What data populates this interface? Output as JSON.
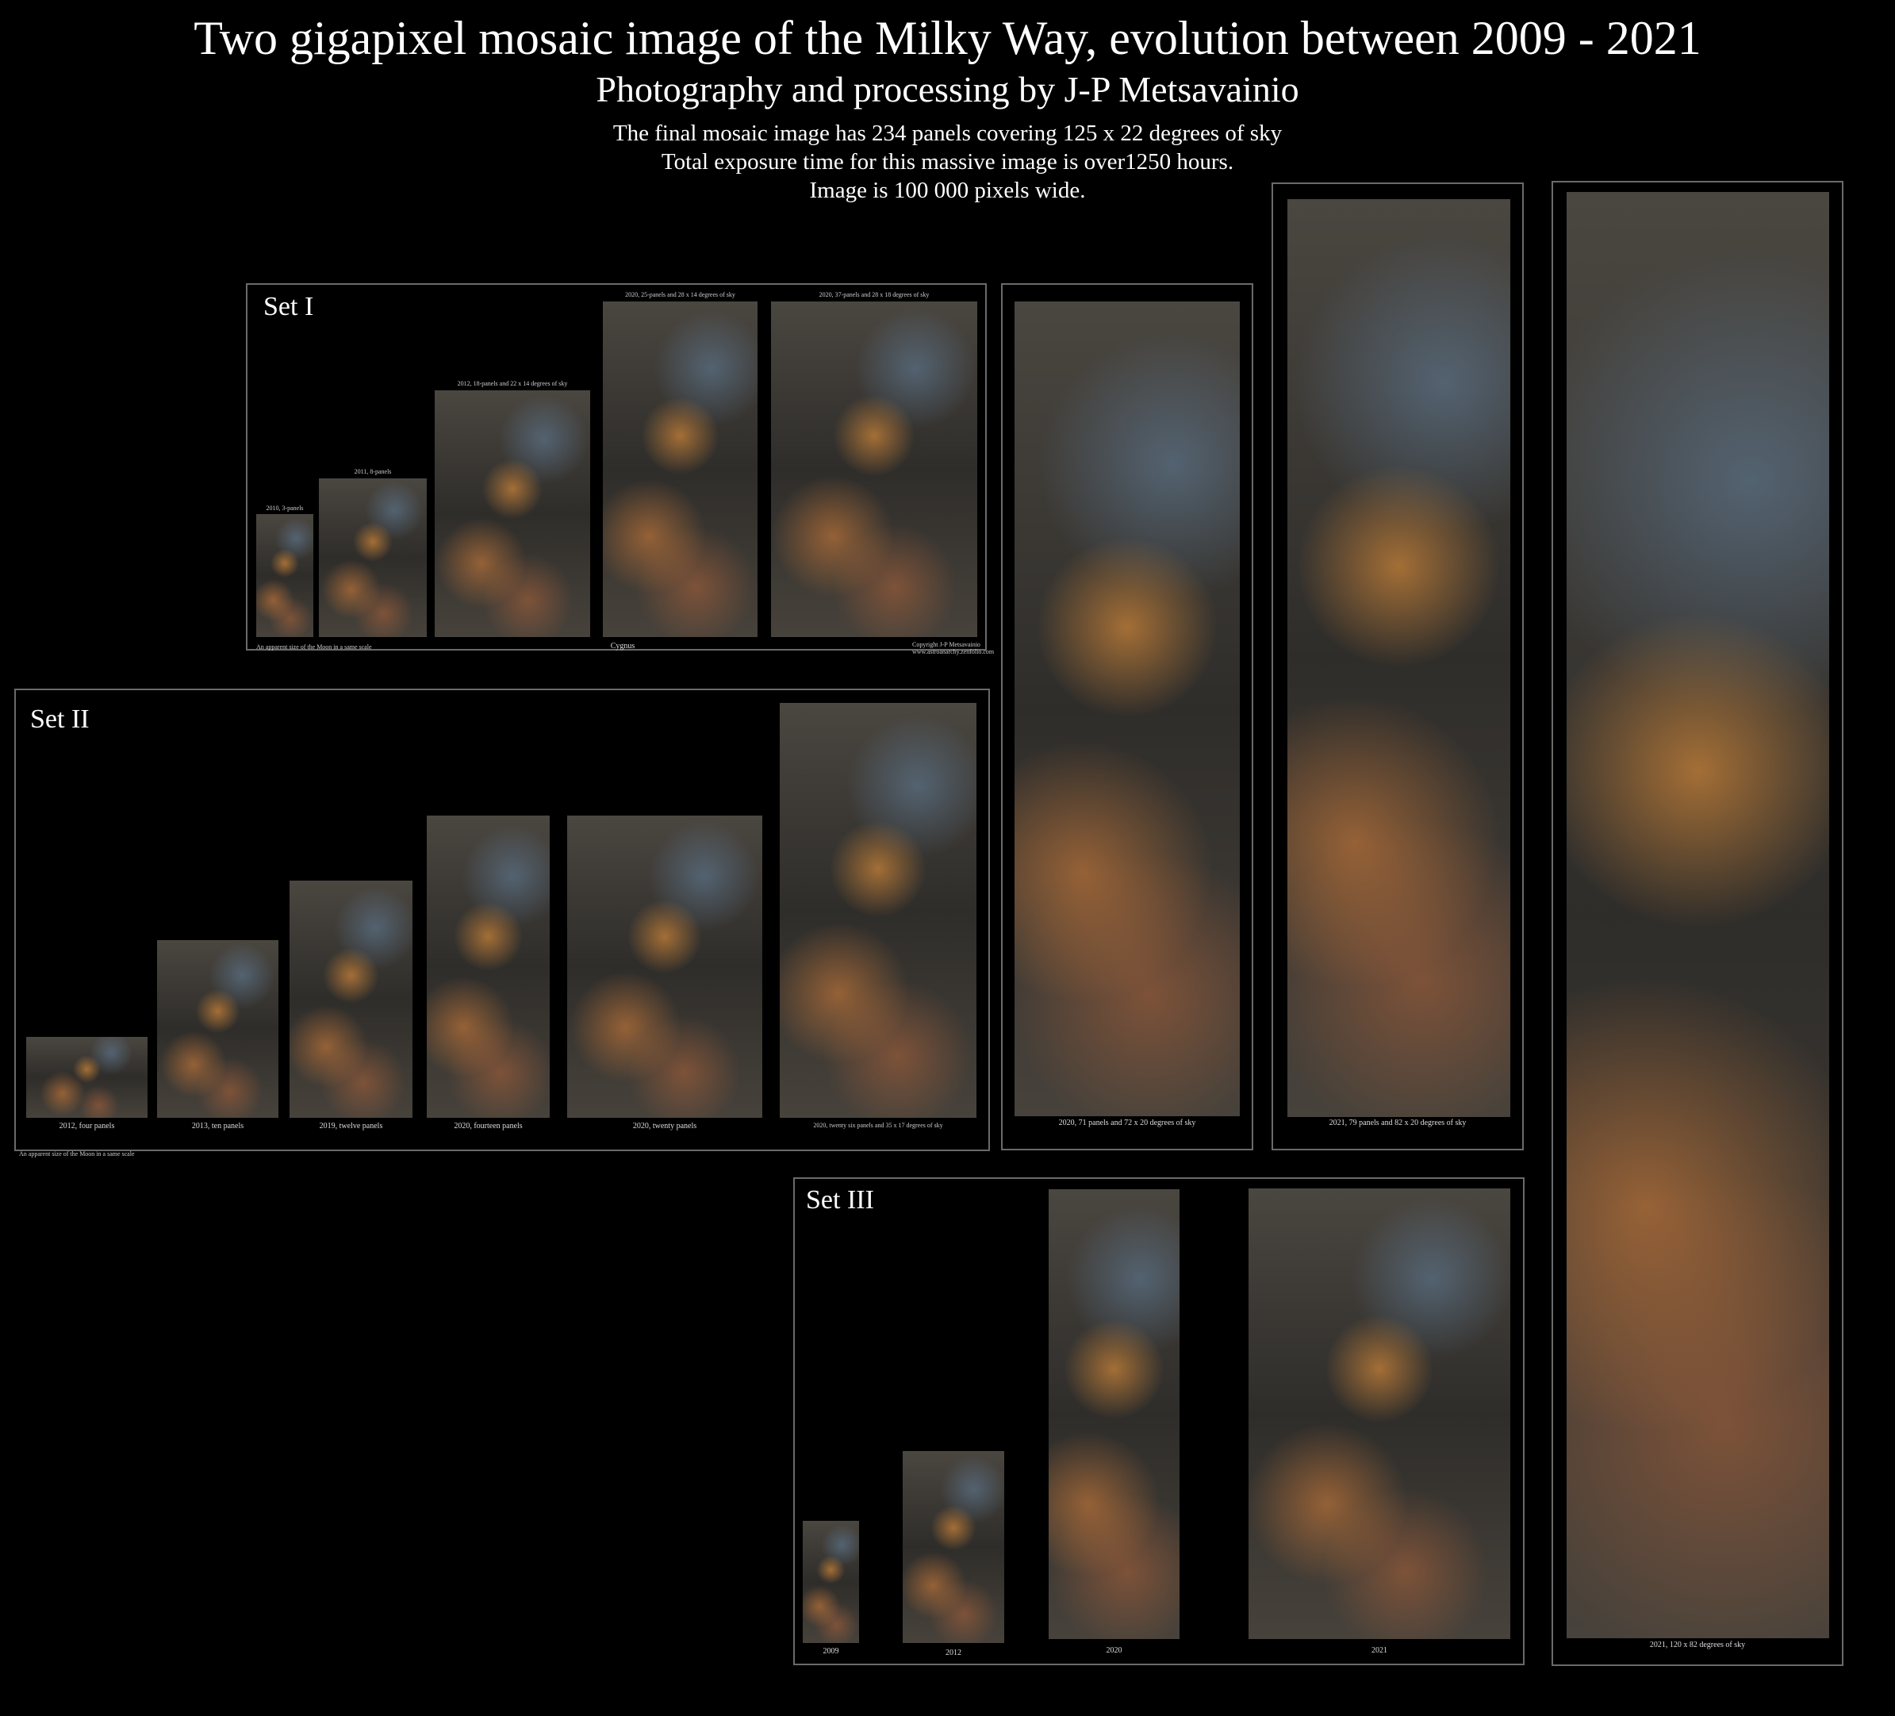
{
  "header": {
    "title": "Two gigapixel mosaic image of the Milky Way, evolution between 2009 - 2021",
    "subtitle": "Photography and processing by J-P Metsavainio",
    "info1": "The final mosaic image has 234 panels covering 125 x 22 degrees of sky",
    "info2": "Total exposure time for this massive image is over1250 hours.",
    "info3": "Image is 100 000 pixels wide."
  },
  "set1": {
    "label": "Set I",
    "captions": [
      "2010, 3-panels",
      "2011, 8-panels",
      "2012, 18-panels and 22 x 14 degrees of sky",
      "2020, 25-panels and 28 x 14 degrees of sky",
      "2020, 37-panels and 28 x 18 degrees of sky"
    ],
    "footer_center": "Cygnus",
    "footer_left": "An apparent size of the Moon in a same scale",
    "footer_right": "Copyright J-P Metsavainio www.astroanarchy.zenfolio.com"
  },
  "set2": {
    "label": "Set II",
    "captions": [
      "2012, four panels",
      "2013, ten panels",
      "2019, twelve panels",
      "2020, fourteen panels",
      "2020, twenty panels",
      "2020, twenty six panels and 35 x 17 degrees of sky"
    ],
    "footer_left": "An apparent size of the Moon in a same scale"
  },
  "big": {
    "caption1": "2020, 71 panels and 72 x 20 degrees of sky",
    "caption2": "2021, 79 panels and 82 x 20 degrees of sky",
    "caption3": "2021, 120 x 82 degrees of sky"
  },
  "set3": {
    "label": "Set III",
    "captions": [
      "2009",
      "2012",
      "2020",
      "2021"
    ]
  }
}
